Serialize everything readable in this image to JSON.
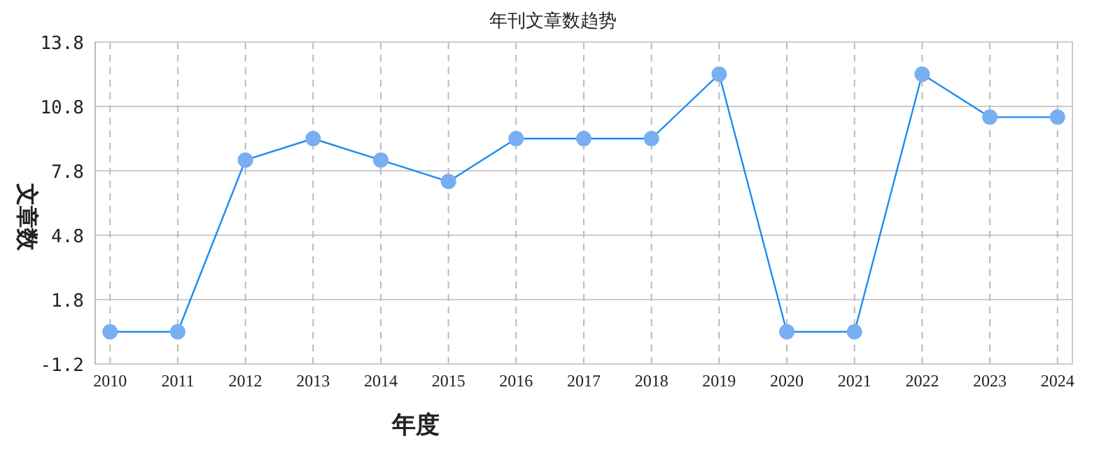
{
  "chart_data": {
    "type": "line",
    "title": "年刊文章数趋势",
    "xlabel": "年度",
    "ylabel": "文章数",
    "categories": [
      "2010",
      "2011",
      "2012",
      "2013",
      "2014",
      "2015",
      "2016",
      "2017",
      "2018",
      "2019",
      "2020",
      "2021",
      "2022",
      "2023",
      "2024"
    ],
    "series": [
      {
        "color": "#1a8cf0",
        "values": [
          0.3,
          0.3,
          8.3,
          9.3,
          8.3,
          7.3,
          9.3,
          9.3,
          9.3,
          12.3,
          0.3,
          0.3,
          12.3,
          10.3,
          10.3
        ]
      }
    ],
    "ylim": [
      -1.2,
      13.8
    ],
    "yticks": [
      -1.2,
      1.8,
      4.8,
      7.8,
      10.8,
      13.8
    ],
    "grid": true,
    "marker": "circle",
    "line_style": "solid"
  }
}
